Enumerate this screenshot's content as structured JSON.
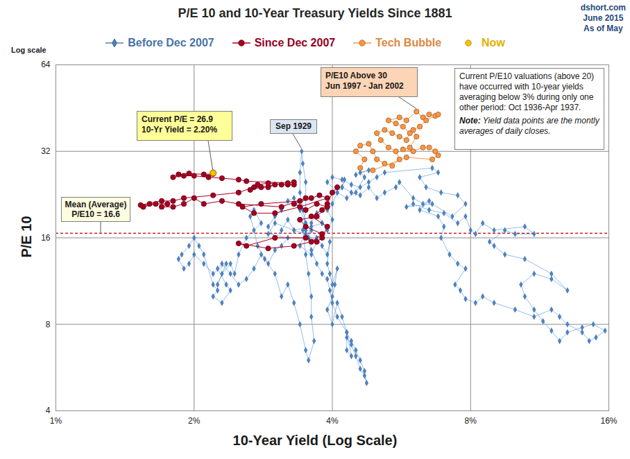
{
  "chart_data": {
    "type": "scatter",
    "title": "P/E 10 and 10-Year Treasury Yields Since 1881",
    "source_lines": [
      "dshort.com",
      "June 2015",
      "As of May"
    ],
    "log_note": "Log scale",
    "x_label": "10-Year Yield (Log Scale)",
    "y_label": "P/E 10",
    "log": true,
    "grid": true,
    "legend": "top",
    "xlim": [
      1,
      16
    ],
    "xticks": [
      {
        "value": 1,
        "label": "1%"
      },
      {
        "value": 2,
        "label": "2%"
      },
      {
        "value": 4,
        "label": "4%"
      },
      {
        "value": 8,
        "label": "8%"
      },
      {
        "value": 16,
        "label": "16%"
      }
    ],
    "ylim": [
      4,
      64
    ],
    "yticks": [
      4,
      8,
      16,
      32,
      64
    ],
    "series": [
      {
        "name": "Before Dec 2007",
        "color": "#4f81bd",
        "marker": "diamond",
        "line_style": "solid",
        "x": [
          3.8,
          3.7,
          3.6,
          3.55,
          3.5,
          3.4,
          3.6,
          3.7,
          3.5,
          3.3,
          3.2,
          3.1,
          3.0,
          2.9,
          3.0,
          3.1,
          3.2,
          3.3,
          3.4,
          3.5,
          3.6,
          3.7,
          3.8,
          3.9,
          3.95,
          3.9,
          3.95,
          4.0,
          4.1,
          4.05,
          4.0,
          3.9,
          4.0,
          4.1,
          4.2,
          4.3,
          4.4,
          4.5,
          4.6,
          4.7,
          4.75,
          4.7,
          4.6,
          4.5,
          4.4,
          4.3,
          4.3,
          4.4,
          4.3,
          4.1,
          4.0,
          3.95,
          3.9,
          3.8,
          3.7,
          3.6,
          3.55,
          3.5,
          3.45,
          3.4,
          3.4,
          3.43,
          3.45,
          3.5,
          3.5,
          3.45,
          3.5,
          3.55,
          3.6,
          3.6,
          3.65,
          3.55,
          3.5,
          3.4,
          3.3,
          3.2,
          3.1,
          3.0,
          2.85,
          2.75,
          2.7,
          2.65,
          2.7,
          2.8,
          2.6,
          2.5,
          2.45,
          2.4,
          2.3,
          2.25,
          2.35,
          2.2,
          2.1,
          2.0,
          1.95,
          1.9,
          1.85,
          1.88,
          1.95,
          2.0,
          2.05,
          2.1,
          2.2,
          2.25,
          2.2,
          2.3,
          2.4,
          2.35,
          2.25,
          2.3,
          2.4,
          2.5,
          2.6,
          2.7,
          2.8,
          2.9,
          3.0,
          3.1,
          3.2,
          2.9,
          3.0,
          3.3,
          3.6,
          3.8,
          3.9,
          4.0,
          3.9,
          4.0,
          4.1,
          4.2,
          4.25,
          4.2,
          4.4,
          4.6,
          4.8,
          5.0,
          5.2,
          5.5,
          5.6,
          6.0,
          6.3,
          6.5,
          6.2,
          6.8,
          7.0,
          6.9,
          7.2,
          7.5,
          7.8,
          7.4,
          7.6,
          7.8,
          8.2,
          8.5,
          9.0,
          10.0,
          11,
          12,
          12.5,
          13,
          14,
          14.5,
          15,
          15.7,
          14.8,
          14,
          13,
          12.5,
          12,
          11.5,
          11,
          10.5,
          10.3,
          11,
          12,
          13,
          12,
          10.5,
          9.5,
          9,
          8.8,
          9.5,
          10,
          11,
          10.5,
          9,
          8.5,
          8.2,
          8.0,
          7.8,
          7.5,
          7,
          6.5,
          6,
          5.8,
          6.6,
          7.3,
          7.8,
          7.5,
          6.9,
          6.4,
          6.2,
          6.8,
          6.6,
          5.2,
          5.0,
          4.8,
          4.6,
          4.4,
          4.2,
          4.0,
          3.9,
          4.1,
          4.3,
          4.5,
          4.7,
          4.6,
          4.8,
          4.5
        ],
        "values": [
          18,
          19.5,
          18,
          16,
          17,
          15,
          14,
          15.5,
          16.5,
          17,
          18.5,
          17,
          16,
          17.5,
          19,
          20,
          21.5,
          22,
          20,
          18,
          17,
          16,
          15,
          14,
          15.5,
          13,
          12,
          11,
          12.5,
          11,
          10,
          9,
          8,
          9.5,
          8.5,
          7.5,
          7,
          6.5,
          6,
          5.5,
          5.0,
          5.3,
          5.6,
          6.2,
          6.8,
          7.2,
          6.5,
          6.2,
          7.5,
          8.5,
          9.5,
          10.5,
          11.5,
          12,
          13,
          14.5,
          16,
          18,
          20,
          23,
          27,
          32,
          29,
          25,
          20,
          17,
          14,
          12,
          10,
          8.5,
          7,
          6,
          6.5,
          8,
          9.5,
          11,
          10,
          12,
          13.5,
          15,
          17,
          19,
          20,
          18,
          16,
          14,
          12,
          13,
          12,
          11,
          13,
          12,
          13,
          14,
          13,
          12.5,
          13.5,
          14,
          15,
          16,
          15,
          14,
          11,
          10.5,
          10,
          9.5,
          10.5,
          11,
          12.5,
          13,
          12,
          11,
          11.5,
          12.5,
          14,
          13,
          14.5,
          15,
          16,
          16.5,
          18,
          17,
          17.5,
          18,
          17,
          18.5,
          20,
          21,
          23,
          24,
          25.5,
          24,
          23,
          22.5,
          24,
          22,
          23,
          24,
          25,
          22,
          21,
          21.5,
          20,
          19,
          17.5,
          16,
          14,
          13,
          12.5,
          11,
          10.5,
          9.8,
          9.5,
          10,
          9.5,
          9,
          8.5,
          9,
          8.5,
          8,
          7.5,
          7,
          7.2,
          7.6,
          8,
          7.8,
          7.5,
          7.0,
          7.6,
          8.2,
          9,
          10,
          11,
          12,
          11.5,
          10.5,
          12,
          13.5,
          14,
          15,
          15.5,
          17,
          16.5,
          16.5,
          17.5,
          17,
          18,
          16.5,
          17,
          19,
          18,
          19.5,
          20,
          21,
          20.5,
          21,
          19,
          21,
          22.5,
          23,
          24,
          26,
          27,
          28,
          27,
          26,
          25,
          24,
          24.5,
          25.5,
          26,
          25,
          23,
          22,
          23,
          26,
          27,
          27.5,
          26.5
        ]
      },
      {
        "name": "Since Dec 2007",
        "color": "#a50021",
        "marker": "circle",
        "line_style": "solid",
        "x": [
          4.1,
          4.0,
          3.9,
          3.8,
          3.6,
          3.9,
          3.8,
          3.7,
          3.5,
          3.0,
          2.6,
          2.5,
          2.9,
          3.3,
          3.6,
          3.8,
          3.5,
          3.4,
          3.7,
          3.9,
          3.7,
          3.5,
          3.3,
          3.6,
          3.75,
          3.9,
          3.4,
          3.0,
          2.7,
          2.55,
          2.8,
          3.4,
          3.5,
          3.1,
          2.5,
          2.3,
          2.1,
          2.0,
          1.9,
          1.8,
          1.7,
          1.75,
          1.65,
          1.55,
          1.6,
          1.53,
          1.7,
          1.8,
          1.9,
          2.2,
          2.5,
          2.7,
          2.9,
          3.0,
          2.8,
          2.65,
          2.75,
          2.9,
          3.1,
          3.2,
          3.3,
          3.3,
          3.2,
          2.6,
          2.5,
          2.3,
          2.15,
          2.0,
          1.9,
          1.8,
          1.85,
          1.95,
          2.1,
          2.2
        ],
        "values": [
          24,
          23,
          21,
          20,
          19,
          17.5,
          16,
          15.5,
          16,
          16,
          15,
          15.3,
          14.7,
          15,
          15.5,
          16.5,
          17.5,
          18.5,
          19,
          20.5,
          21,
          20,
          21,
          22,
          22.5,
          22,
          20.5,
          19.5,
          19.5,
          20.5,
          21,
          21.5,
          22,
          20.5,
          21,
          21.5,
          21,
          22,
          21,
          20.5,
          20.5,
          21,
          21,
          20.5,
          21,
          20.8,
          21.5,
          21.5,
          22,
          22.5,
          23,
          24,
          24,
          24.5,
          24,
          23.5,
          24.5,
          24.8,
          24.5,
          24.5,
          24.5,
          25,
          24.8,
          25.2,
          25.5,
          25.8,
          26,
          26.3,
          26.3,
          26,
          26.6,
          26.8,
          26.6,
          26.7
        ]
      },
      {
        "name": "Tech Bubble",
        "color": "#f79646",
        "marker": "circle",
        "line_style": "solid",
        "x": [
          4.6,
          4.7,
          4.5,
          4.6,
          4.8,
          4.9,
          5.0,
          5.2,
          5.4,
          5.6,
          5.5,
          5.3,
          5.1,
          5.0,
          5.2,
          5.4,
          5.6,
          5.8,
          5.9,
          5.7,
          5.5,
          5.3,
          5.6,
          5.8,
          6.1,
          6.3,
          6.5,
          6.7,
          6.8,
          6.4,
          6.2,
          6.0,
          6.1,
          5.9,
          5.7,
          6.0,
          6.3,
          6.5,
          6.7,
          6.8,
          6.6,
          5.8,
          4.9
        ],
        "values": [
          28,
          30,
          32,
          33.5,
          34,
          32,
          30,
          29,
          28.5,
          30,
          32,
          33,
          35,
          37,
          38,
          37,
          36,
          35,
          37,
          39,
          40,
          41,
          42,
          41,
          44,
          42,
          43,
          42.5,
          43,
          41,
          39,
          38,
          36,
          33,
          32.5,
          32,
          33,
          33,
          32,
          31,
          30,
          30.5,
          27.5
        ]
      },
      {
        "name": "Now",
        "color": "#ffc000",
        "marker": "circle",
        "line_style": "none",
        "x": [
          2.2
        ],
        "values": [
          26.9
        ]
      }
    ],
    "mean_line": {
      "value": 16.6,
      "color": "#c00000",
      "line_style": "dashed",
      "text": [
        "Mean (Average)",
        "P/E10 = 16.6"
      ]
    },
    "annotations": [
      {
        "text": [
          "Current P/E = 26.9",
          "10-Yr Yield = 2.20%"
        ],
        "target": "Now",
        "color": "#ffff99"
      },
      {
        "text": [
          "Sep 1929"
        ],
        "x": 3.43,
        "y": 32,
        "color": "#dce6f2"
      },
      {
        "text": [
          "P/E10 Above 30",
          "Jun 1997 - Jan 2002"
        ],
        "target": "Tech Bubble",
        "color": "#fbd5b5"
      },
      {
        "text": [
          "Current P/E10 valuations  (above 20) have occurred with 10-year yields averaging below 3% during only one other period: Oct 1936-Apr 1937."
        ],
        "note_label": "Note:",
        "note": "Yield data points are the montly averages of daily closes.",
        "color": "#ffffff"
      }
    ]
  }
}
